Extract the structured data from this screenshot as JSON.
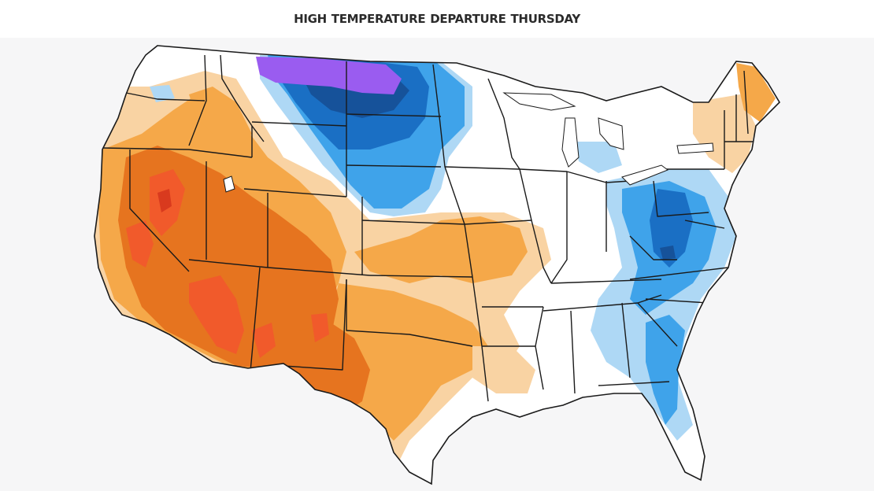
{
  "header": {
    "title": "HIGH TEMPERATURE DEPARTURE  THURSDAY"
  },
  "map": {
    "region": "Contiguous United States",
    "colors": {
      "land": "#ffffff",
      "background": "#f6f6f7",
      "border": "#1a1a1a",
      "light_warm": "#f9d3a3",
      "warm": "#f5a849",
      "hot": "#e6741f",
      "very_hot": "#f15a2b",
      "extreme_hot": "#d93a1e",
      "light_cool": "#aed8f5",
      "cool": "#3fa3ea",
      "cold": "#1a6fc4",
      "very_cold": "#16529a",
      "extreme_cold": "#9a5cf0"
    }
  }
}
